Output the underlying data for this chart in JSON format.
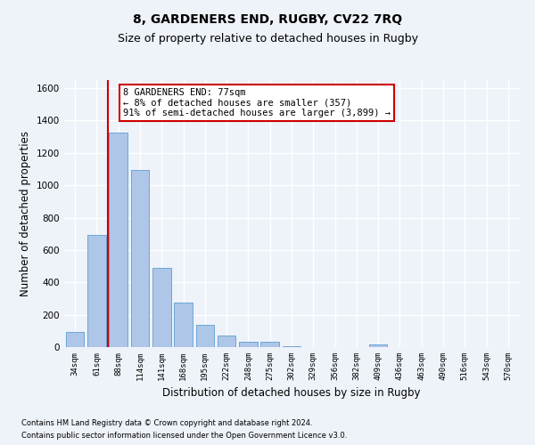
{
  "title": "8, GARDENERS END, RUGBY, CV22 7RQ",
  "subtitle": "Size of property relative to detached houses in Rugby",
  "xlabel": "Distribution of detached houses by size in Rugby",
  "ylabel": "Number of detached properties",
  "categories": [
    "34sqm",
    "61sqm",
    "88sqm",
    "114sqm",
    "141sqm",
    "168sqm",
    "195sqm",
    "222sqm",
    "248sqm",
    "275sqm",
    "302sqm",
    "329sqm",
    "356sqm",
    "382sqm",
    "409sqm",
    "436sqm",
    "463sqm",
    "490sqm",
    "516sqm",
    "543sqm",
    "570sqm"
  ],
  "values": [
    95,
    695,
    1325,
    1095,
    490,
    275,
    135,
    70,
    35,
    35,
    5,
    0,
    0,
    0,
    15,
    0,
    0,
    0,
    0,
    0,
    0
  ],
  "bar_color": "#aec6e8",
  "bar_edge_color": "#5a9fd4",
  "vline_x": 1.5,
  "vline_color": "#cc0000",
  "annotation_text": "8 GARDENERS END: 77sqm\n← 8% of detached houses are smaller (357)\n91% of semi-detached houses are larger (3,899) →",
  "annotation_box_color": "#ffffff",
  "annotation_box_edge": "#cc0000",
  "ylim": [
    0,
    1650
  ],
  "yticks": [
    0,
    200,
    400,
    600,
    800,
    1000,
    1200,
    1400,
    1600
  ],
  "footer_line1": "Contains HM Land Registry data © Crown copyright and database right 2024.",
  "footer_line2": "Contains public sector information licensed under the Open Government Licence v3.0.",
  "bg_color": "#eef2f9",
  "grid_color": "#ffffff",
  "title_fontsize": 10,
  "subtitle_fontsize": 9,
  "xlabel_fontsize": 8.5,
  "ylabel_fontsize": 8.5,
  "annot_fontsize": 7.5
}
